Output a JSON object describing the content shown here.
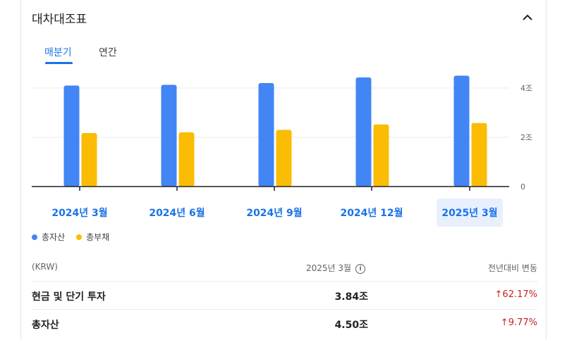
{
  "card": {
    "title": "대차대조표"
  },
  "tabs": [
    {
      "label": "매분기",
      "active": true
    },
    {
      "label": "연간",
      "active": false
    }
  ],
  "chart_data": {
    "type": "bar",
    "categories": [
      "2024년 3월",
      "2024년 6월",
      "2024년 9월",
      "2024년 12월",
      "2025년 3월"
    ],
    "series": [
      {
        "name": "총자산",
        "color": "#4285f4",
        "values": [
          4.1,
          4.13,
          4.2,
          4.43,
          4.5
        ]
      },
      {
        "name": "총부채",
        "color": "#fbbc04",
        "values": [
          2.17,
          2.2,
          2.3,
          2.52,
          2.58
        ]
      }
    ],
    "ytick_labels": [
      "0",
      "2조",
      "4조"
    ],
    "ylim": [
      0,
      4.8
    ],
    "selected_category": "2025년 3월",
    "grid": true
  },
  "legend": [
    {
      "label": "총자산",
      "color": "#4285f4"
    },
    {
      "label": "총부채",
      "color": "#fbbc04"
    }
  ],
  "table": {
    "headers": {
      "unit": "(KRW)",
      "period": "2025년 3월",
      "change": "전년대비 변동"
    },
    "rows": [
      {
        "label": "현금 및 단기 투자",
        "value": "3.84조",
        "change": "62.17%",
        "direction": "up"
      },
      {
        "label": "총자산",
        "value": "4.50조",
        "change": "9.77%",
        "direction": "up"
      }
    ]
  },
  "colors": {
    "accent": "#1a73e8",
    "negative": "#c5221f"
  }
}
